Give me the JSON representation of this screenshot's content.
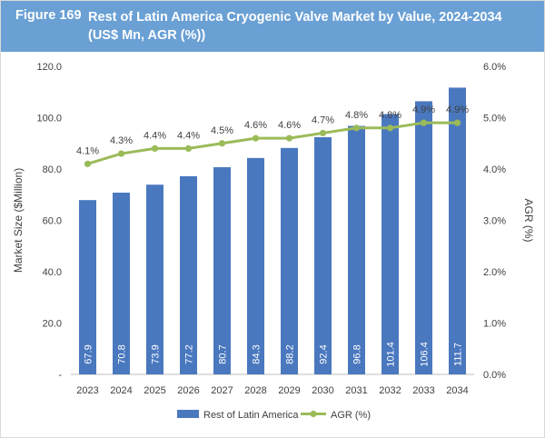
{
  "figure": {
    "label": "Figure 169",
    "title": "Rest of Latin America Cryogenic Valve Market by Value, 2024-2034 (US$ Mn, AGR (%))"
  },
  "colors": {
    "header_bg": "#6aa0d4",
    "bar": "#4a78bf",
    "line": "#9bbb59",
    "axis_text": "#404040",
    "bar_label": "#ffffff"
  },
  "chart_data": {
    "type": "bar",
    "categories": [
      "2023",
      "2024",
      "2025",
      "2026",
      "2027",
      "2028",
      "2029",
      "2030",
      "2031",
      "2032",
      "2033",
      "2034"
    ],
    "series": [
      {
        "name": "Rest of Latin America",
        "type": "bar",
        "axis": "left",
        "values": [
          67.9,
          70.8,
          73.9,
          77.2,
          80.7,
          84.3,
          88.2,
          92.4,
          96.8,
          101.4,
          106.4,
          111.7
        ],
        "labels": [
          "67.9",
          "70.8",
          "73.9",
          "77.2",
          "80.7",
          "84.3",
          "88.2",
          "92.4",
          "96.8",
          "101.4",
          "106.4",
          "111.7"
        ]
      },
      {
        "name": "AGR (%)",
        "type": "line",
        "axis": "right",
        "values": [
          4.1,
          4.3,
          4.4,
          4.4,
          4.5,
          4.6,
          4.6,
          4.7,
          4.8,
          4.8,
          4.9,
          4.9
        ],
        "labels": [
          "4.1%",
          "4.3%",
          "4.4%",
          "4.4%",
          "4.5%",
          "4.6%",
          "4.6%",
          "4.7%",
          "4.8%",
          "4.8%",
          "4.9%",
          "4.9%"
        ]
      }
    ],
    "ylabel": "Market Size ($Million)",
    "y2label": "AGR (%)",
    "ylim": [
      0,
      120
    ],
    "y2lim": [
      0,
      6
    ],
    "yticks": [
      "-",
      "20.0",
      "40.0",
      "60.0",
      "80.0",
      "100.0",
      "120.0"
    ],
    "y2ticks": [
      "0.0%",
      "1.0%",
      "2.0%",
      "3.0%",
      "4.0%",
      "5.0%",
      "6.0%"
    ],
    "grid": false,
    "legend_position": "bottom"
  }
}
